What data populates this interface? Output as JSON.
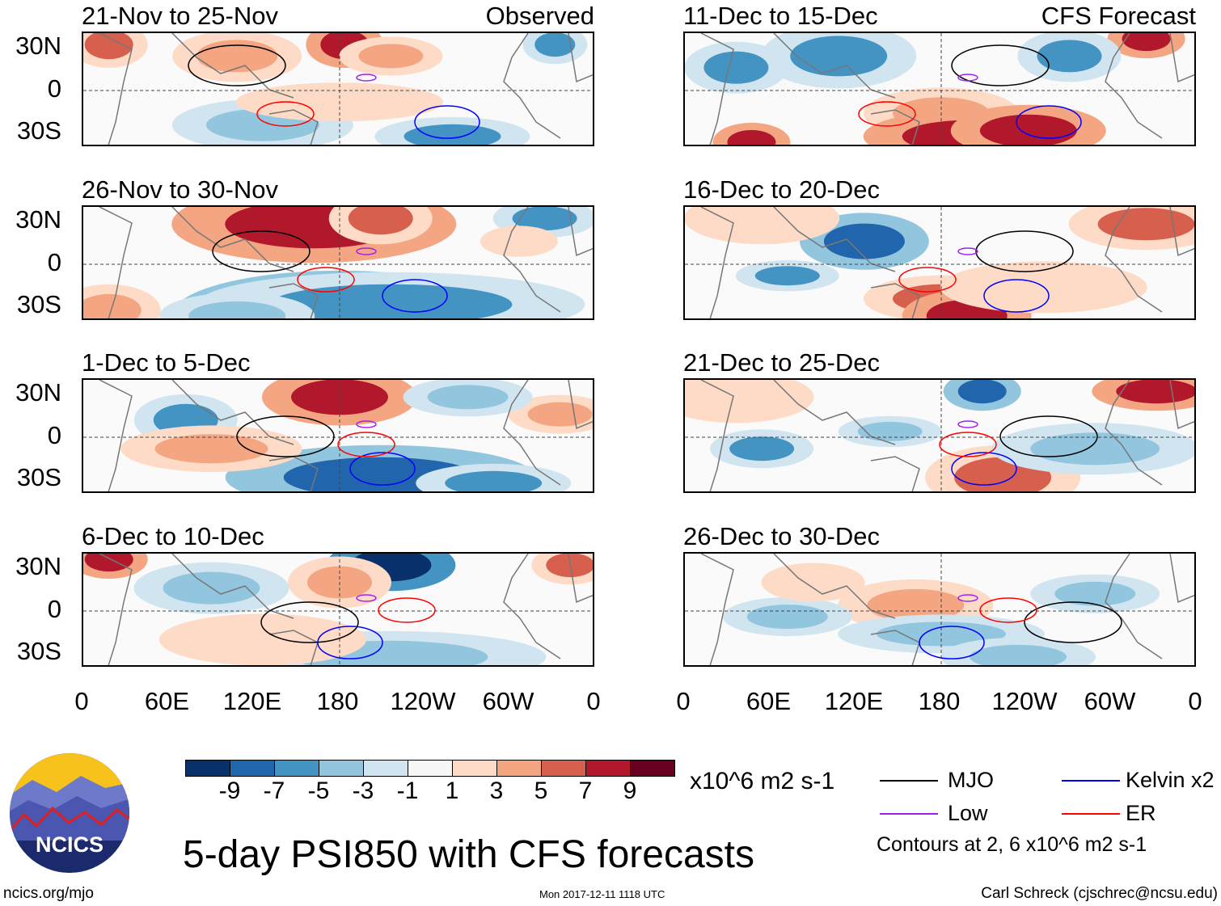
{
  "panels_left": [
    {
      "title": "21-Nov to 25-Nov",
      "tag": "Observed"
    },
    {
      "title": "26-Nov to 30-Nov",
      "tag": ""
    },
    {
      "title": "1-Dec to 5-Dec",
      "tag": ""
    },
    {
      "title": "6-Dec to 10-Dec",
      "tag": ""
    }
  ],
  "panels_right": [
    {
      "title": "11-Dec to 15-Dec",
      "tag": "CFS Forecast"
    },
    {
      "title": "16-Dec to 20-Dec",
      "tag": ""
    },
    {
      "title": "21-Dec to 25-Dec",
      "tag": ""
    },
    {
      "title": "26-Dec to 30-Dec",
      "tag": ""
    }
  ],
  "y_ticks": [
    "30N",
    "0",
    "30S"
  ],
  "x_ticks": [
    "0",
    "60E",
    "120E",
    "180",
    "120W",
    "60W",
    "0"
  ],
  "colorbar": {
    "colors": [
      "#08306b",
      "#2166ac",
      "#4393c3",
      "#92c5de",
      "#d1e5f0",
      "#f7f7f7",
      "#fddbc7",
      "#f4a582",
      "#d6604d",
      "#b2182b",
      "#67001f"
    ],
    "labels": [
      "-9",
      "-7",
      "-5",
      "-3",
      "-1",
      "1",
      "3",
      "5",
      "7",
      "9"
    ],
    "units": "x10^6 m2 s-1"
  },
  "legend": {
    "mjo": {
      "label": "MJO",
      "color": "#000000"
    },
    "low": {
      "label": "Low",
      "color": "#a020f0"
    },
    "kelvin": {
      "label": "Kelvin x2",
      "color": "#0000ff"
    },
    "er": {
      "label": "ER",
      "color": "#ff0000"
    },
    "note": "Contours at 2, 6 x10^6 m2 s-1"
  },
  "main_title": "5-day PSI850 with CFS forecasts",
  "logo_text": "NCICS",
  "site": "ncics.org/mjo",
  "timestamp": "Mon 2017-12-11 1118 UTC",
  "credit": "Carl Schreck (cjschrec@ncsu.edu)"
}
